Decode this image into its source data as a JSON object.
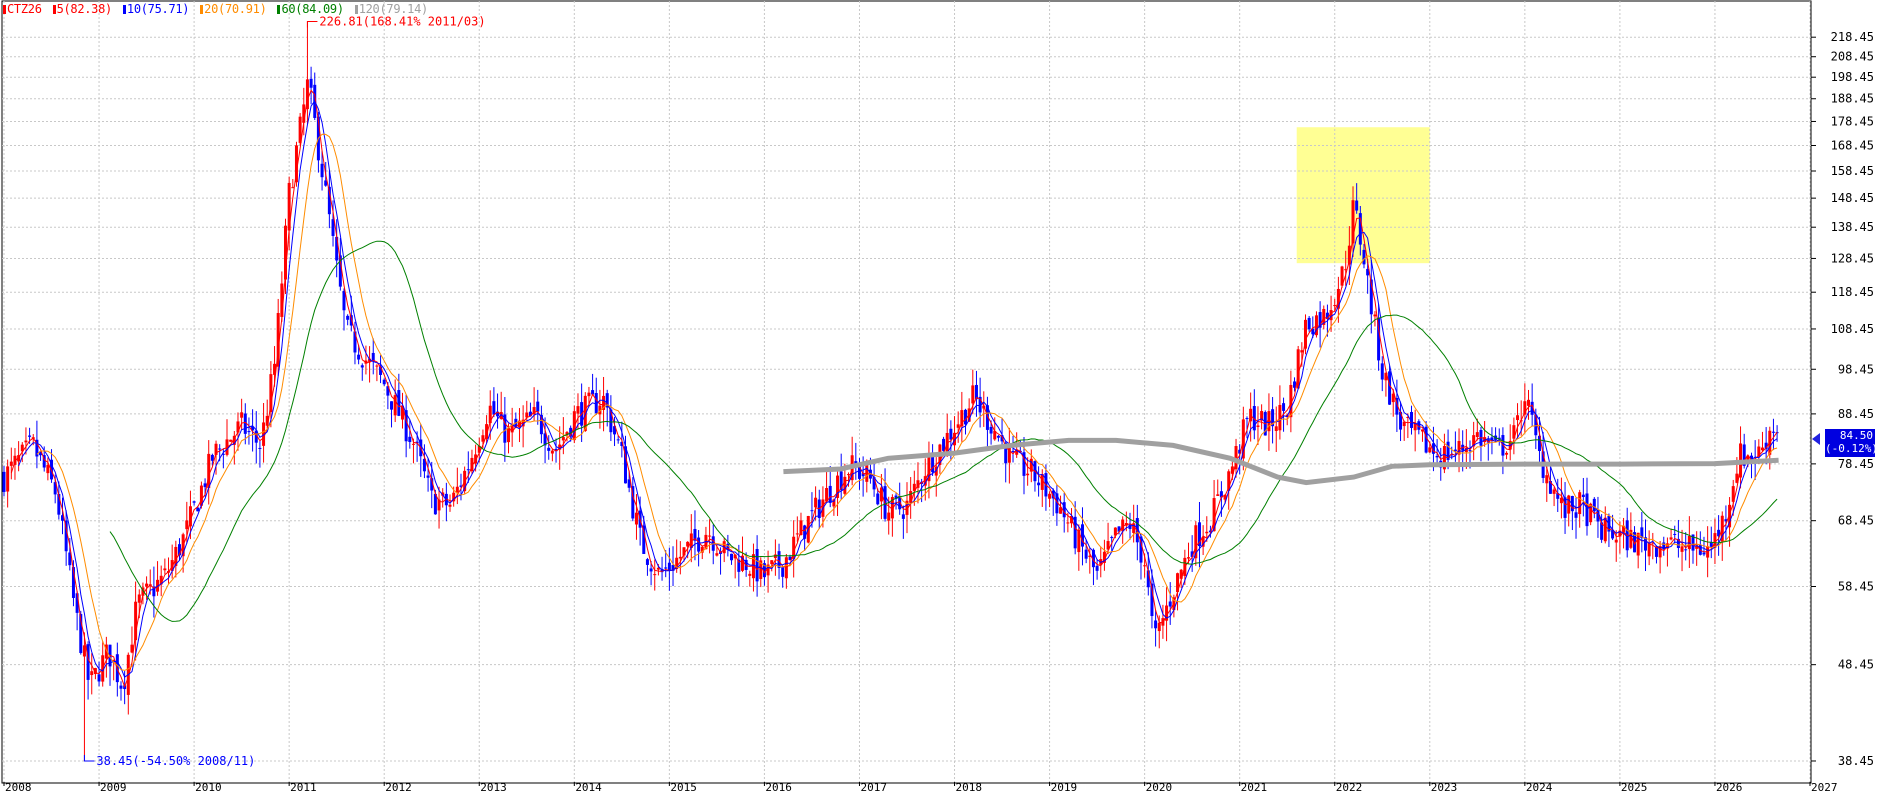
{
  "legend": {
    "symbol": "CTZ26",
    "items": [
      {
        "label": "5(82.38)",
        "color": "#ff0000"
      },
      {
        "label": "10(75.71)",
        "color": "#0000ff"
      },
      {
        "label": "20(70.91)",
        "color": "#ff8c00"
      },
      {
        "label": "60(84.09)",
        "color": "#008000"
      },
      {
        "label": "120(79.14)",
        "color": "#a0a0a0"
      }
    ]
  },
  "annotations": {
    "high": "226.81(168.41% 2011/03)",
    "low": "38.45(-54.50% 2008/11)"
  },
  "current_price": {
    "value": "84.50",
    "change": "(-0.12%)"
  },
  "colors": {
    "up": "#ff0000",
    "down": "#0000ff",
    "grid": "#c8c8c8",
    "highlight": "#ffff88"
  },
  "chart_data": {
    "type": "candlestick",
    "title": "",
    "xlabel": "",
    "ylabel": "",
    "y_scale": "log",
    "ylim": [
      37,
      236
    ],
    "xlim": [
      2008.0,
      2027.0
    ],
    "y_ticks": [
      "218.45",
      "208.45",
      "198.45",
      "188.45",
      "178.45",
      "168.45",
      "158.45",
      "148.45",
      "138.45",
      "128.45",
      "118.45",
      "108.45",
      "98.45",
      "88.45",
      "78.45",
      "68.45",
      "58.45",
      "48.45",
      "38.45"
    ],
    "x_ticks": [
      "2008",
      "2009",
      "2010",
      "2011",
      "2012",
      "2013",
      "2014",
      "2015",
      "2016",
      "2017",
      "2018",
      "2019",
      "2020",
      "2021",
      "2022",
      "2023",
      "2024",
      "2025",
      "2026",
      "2027"
    ],
    "grid": true,
    "highlight_region": {
      "x": [
        2021.6,
        2023.0
      ],
      "y": [
        127,
        176
      ]
    },
    "close_anchors": [
      [
        2008.0,
        76
      ],
      [
        2008.3,
        82
      ],
      [
        2008.55,
        73
      ],
      [
        2008.75,
        55
      ],
      [
        2008.9,
        46
      ],
      [
        2009.1,
        50
      ],
      [
        2009.25,
        46
      ],
      [
        2009.4,
        56
      ],
      [
        2009.7,
        60
      ],
      [
        2009.9,
        66
      ],
      [
        2010.2,
        80
      ],
      [
        2010.5,
        86
      ],
      [
        2010.7,
        82
      ],
      [
        2010.85,
        100
      ],
      [
        2011.0,
        150
      ],
      [
        2011.2,
        196
      ],
      [
        2011.35,
        158
      ],
      [
        2011.5,
        125
      ],
      [
        2011.6,
        108
      ],
      [
        2011.8,
        101
      ],
      [
        2012.0,
        95
      ],
      [
        2012.3,
        83
      ],
      [
        2012.5,
        72
      ],
      [
        2012.7,
        71
      ],
      [
        2012.9,
        79
      ],
      [
        2013.1,
        90
      ],
      [
        2013.3,
        84
      ],
      [
        2013.6,
        88
      ],
      [
        2013.8,
        81
      ],
      [
        2014.0,
        88
      ],
      [
        2014.3,
        92
      ],
      [
        2014.5,
        80
      ],
      [
        2014.7,
        65
      ],
      [
        2014.9,
        60
      ],
      [
        2015.2,
        64
      ],
      [
        2015.4,
        67
      ],
      [
        2015.6,
        63
      ],
      [
        2015.8,
        62
      ],
      [
        2016.0,
        60
      ],
      [
        2016.2,
        62
      ],
      [
        2016.4,
        67
      ],
      [
        2016.7,
        74
      ],
      [
        2016.9,
        78
      ],
      [
        2017.1,
        76
      ],
      [
        2017.3,
        70
      ],
      [
        2017.5,
        71
      ],
      [
        2017.7,
        78
      ],
      [
        2017.9,
        83
      ],
      [
        2018.2,
        92
      ],
      [
        2018.4,
        86
      ],
      [
        2018.6,
        79
      ],
      [
        2018.8,
        77
      ],
      [
        2018.95,
        74
      ],
      [
        2019.1,
        71
      ],
      [
        2019.3,
        65
      ],
      [
        2019.5,
        60
      ],
      [
        2019.7,
        66
      ],
      [
        2019.85,
        68
      ],
      [
        2020.0,
        62
      ],
      [
        2020.1,
        51
      ],
      [
        2020.3,
        58
      ],
      [
        2020.5,
        65
      ],
      [
        2020.7,
        69
      ],
      [
        2020.9,
        77
      ],
      [
        2021.1,
        88
      ],
      [
        2021.3,
        86
      ],
      [
        2021.5,
        90
      ],
      [
        2021.7,
        110
      ],
      [
        2021.9,
        112
      ],
      [
        2022.1,
        125
      ],
      [
        2022.2,
        146
      ],
      [
        2022.3,
        130
      ],
      [
        2022.4,
        112
      ],
      [
        2022.5,
        98
      ],
      [
        2022.7,
        86
      ],
      [
        2022.9,
        83
      ],
      [
        2023.1,
        80
      ],
      [
        2023.3,
        81
      ],
      [
        2023.5,
        84
      ],
      [
        2023.7,
        81
      ],
      [
        2023.9,
        84
      ],
      [
        2024.0,
        93
      ],
      [
        2024.15,
        80
      ],
      [
        2024.4,
        70
      ],
      [
        2024.6,
        71
      ],
      [
        2024.8,
        67
      ],
      [
        2025.0,
        66
      ],
      [
        2025.2,
        65
      ],
      [
        2025.5,
        65
      ],
      [
        2025.7,
        64
      ],
      [
        2025.95,
        64
      ],
      [
        2026.1,
        69
      ],
      [
        2026.25,
        80
      ],
      [
        2026.45,
        80
      ],
      [
        2026.6,
        86
      ],
      [
        2026.67,
        84.5
      ]
    ],
    "ma120_anchors": [
      [
        2016.2,
        77
      ],
      [
        2016.8,
        77.5
      ],
      [
        2017.3,
        79.5
      ],
      [
        2018.0,
        80.5
      ],
      [
        2018.6,
        82
      ],
      [
        2019.2,
        83
      ],
      [
        2019.7,
        83
      ],
      [
        2020.3,
        82
      ],
      [
        2020.9,
        79.5
      ],
      [
        2021.4,
        76
      ],
      [
        2021.7,
        75
      ],
      [
        2022.2,
        76
      ],
      [
        2022.6,
        78
      ],
      [
        2023.0,
        78.3
      ],
      [
        2024.0,
        78.4
      ],
      [
        2025.0,
        78.4
      ],
      [
        2026.0,
        78.5
      ],
      [
        2026.67,
        79.14
      ]
    ],
    "series": [
      {
        "name": "5",
        "window": 5,
        "color": "#ff0000",
        "last": 82.38
      },
      {
        "name": "10",
        "window": 10,
        "color": "#0000ff",
        "last": 75.71
      },
      {
        "name": "20",
        "window": 20,
        "color": "#ff8c00",
        "last": 70.91
      },
      {
        "name": "60",
        "window": 60,
        "color": "#008000",
        "last": 84.09
      },
      {
        "name": "120",
        "color": "#a0a0a0",
        "last": 79.14
      }
    ]
  }
}
